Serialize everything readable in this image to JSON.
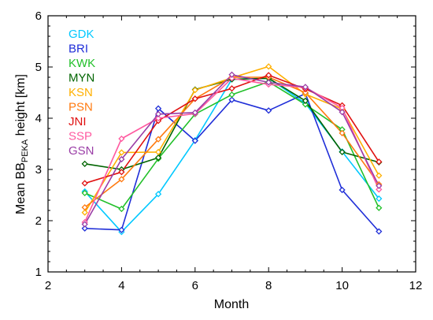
{
  "chart_data": {
    "type": "line",
    "title": "",
    "xlabel": "Month",
    "ylabel": {
      "prefix": "Mean BB",
      "subscript": "PEKA",
      "suffix": " height [km]"
    },
    "xlim": [
      2,
      12
    ],
    "ylim": [
      1,
      6
    ],
    "xticks": [
      2,
      4,
      6,
      8,
      10,
      12
    ],
    "yticks": [
      1,
      2,
      3,
      4,
      5,
      6
    ],
    "grid": false,
    "legend_position": "top-left",
    "marker": "diamond-open",
    "x": [
      3,
      4,
      5,
      6,
      7,
      8,
      9,
      10,
      11
    ],
    "series": [
      {
        "name": "GDK",
        "color": "#00c8ff",
        "values": [
          2.57,
          1.78,
          2.52,
          3.57,
          4.76,
          4.78,
          4.29,
          3.35,
          2.43
        ]
      },
      {
        "name": "BRI",
        "color": "#1f2ed8",
        "values": [
          1.85,
          1.82,
          4.19,
          3.56,
          4.36,
          4.15,
          4.48,
          2.6,
          1.79
        ]
      },
      {
        "name": "KWK",
        "color": "#22c02a",
        "values": [
          2.54,
          2.23,
          3.21,
          4.08,
          4.46,
          4.71,
          4.27,
          3.78,
          2.25
        ]
      },
      {
        "name": "MYN",
        "color": "#006400",
        "values": [
          3.11,
          3.0,
          3.23,
          4.56,
          4.76,
          4.78,
          4.34,
          3.34,
          3.14
        ]
      },
      {
        "name": "KSN",
        "color": "#ffb000",
        "values": [
          2.16,
          3.33,
          3.34,
          4.55,
          4.79,
          5.01,
          4.47,
          4.18,
          2.88
        ]
      },
      {
        "name": "PSN",
        "color": "#ff7a10",
        "values": [
          2.26,
          2.81,
          3.59,
          4.38,
          4.8,
          4.8,
          4.5,
          3.71,
          2.71
        ]
      },
      {
        "name": "JNI",
        "color": "#e01010",
        "values": [
          2.73,
          2.95,
          3.95,
          4.38,
          4.58,
          4.84,
          4.57,
          4.25,
          3.15
        ]
      },
      {
        "name": "SSP",
        "color": "#ff5aa0",
        "values": [
          1.97,
          3.6,
          4.0,
          4.09,
          4.78,
          4.66,
          4.6,
          4.2,
          2.61
        ]
      },
      {
        "name": "GSN",
        "color": "#9a3da6",
        "values": [
          1.93,
          3.2,
          4.08,
          4.11,
          4.85,
          4.7,
          4.61,
          4.12,
          2.68
        ]
      }
    ]
  }
}
